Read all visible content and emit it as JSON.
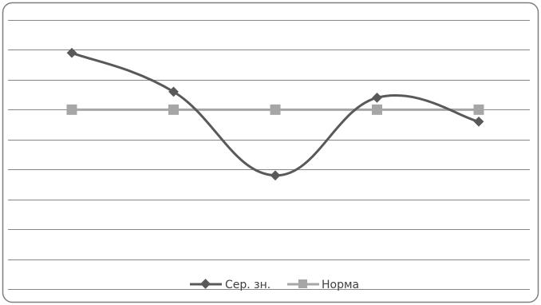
{
  "chart_data": {
    "type": "line",
    "categories": [
      "",
      "",
      "",
      "",
      ""
    ],
    "series": [
      {
        "name": "Сер. зн.",
        "color": "#595959",
        "marker": "diamond",
        "smooth": true,
        "values": [
          7.9,
          6.6,
          3.8,
          6.4,
          5.6
        ]
      },
      {
        "name": "Норма",
        "color": "#a6a6a6",
        "marker": "square",
        "smooth": false,
        "values": [
          6.0,
          6.0,
          6.0,
          6.0,
          6.0
        ]
      }
    ],
    "ylim": [
      0,
      9
    ],
    "grid": true,
    "legend": "bottom",
    "title": "",
    "xlabel": "",
    "ylabel": ""
  },
  "colors": {
    "gridline": "#868686",
    "border": "#7f7f7f"
  }
}
